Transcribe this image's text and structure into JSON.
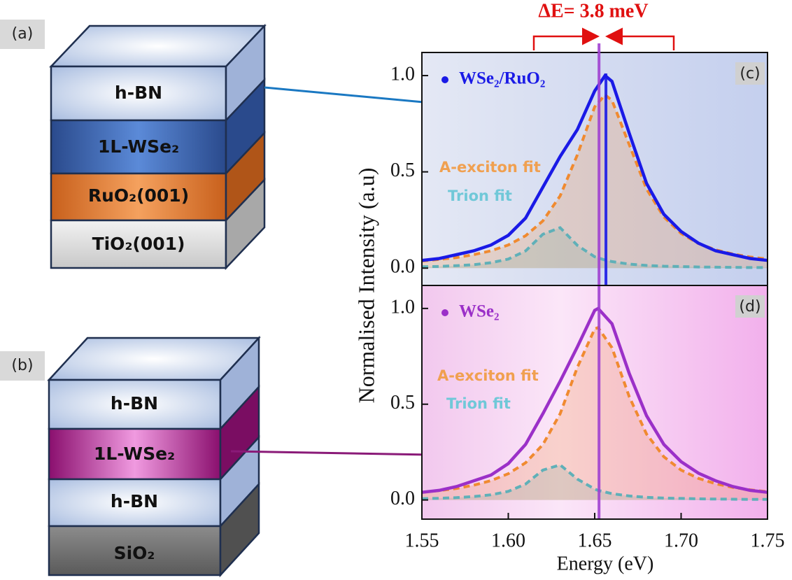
{
  "diagram": {
    "stack_a": {
      "label": "(a)",
      "layers": [
        "h-BN",
        "1L-WSe₂",
        "RuO₂(001)",
        "TiO₂(001)"
      ]
    },
    "stack_b": {
      "label": "(b)",
      "layers": [
        "h-BN",
        "1L-WSe₂",
        "h-BN",
        "SiO₂"
      ]
    }
  },
  "chart_data": [
    {
      "type": "line",
      "panel_label": "(c)",
      "annotation": "ΔE= 3.8 meV",
      "ylabel": "Normalised Intensity (a.u)",
      "x": [
        1.55,
        1.56,
        1.57,
        1.58,
        1.59,
        1.6,
        1.61,
        1.62,
        1.63,
        1.64,
        1.65,
        1.656,
        1.66,
        1.67,
        1.68,
        1.69,
        1.7,
        1.71,
        1.72,
        1.73,
        1.74,
        1.75
      ],
      "series": [
        {
          "name": "WSe₂/RuO₂",
          "color": "#1a1ae6",
          "style": "solid",
          "values": [
            0.04,
            0.05,
            0.07,
            0.09,
            0.12,
            0.17,
            0.26,
            0.42,
            0.58,
            0.72,
            0.92,
            1.0,
            0.97,
            0.7,
            0.44,
            0.28,
            0.19,
            0.13,
            0.09,
            0.07,
            0.05,
            0.04
          ]
        },
        {
          "name": "A-exciton fit",
          "color": "#f08a30",
          "style": "dashed",
          "fill": true,
          "values": [
            0.037,
            0.045,
            0.055,
            0.07,
            0.09,
            0.12,
            0.168,
            0.245,
            0.375,
            0.589,
            0.838,
            0.9,
            0.871,
            0.641,
            0.411,
            0.266,
            0.18,
            0.128,
            0.095,
            0.073,
            0.058,
            0.047
          ]
        },
        {
          "name": "Trion fit",
          "color": "#5fb0b8",
          "style": "dashed",
          "fill": true,
          "values": [
            0.007,
            0.009,
            0.013,
            0.018,
            0.028,
            0.047,
            0.089,
            0.176,
            0.21,
            0.118,
            0.059,
            0.042,
            0.034,
            0.021,
            0.014,
            0.01,
            0.008,
            0.006,
            0.005,
            0.004,
            0.003,
            0.003
          ]
        }
      ],
      "vlines": [
        {
          "x": 1.6565,
          "color": "#1a1ae6"
        }
      ],
      "xlim": [
        1.55,
        1.75
      ],
      "ylim": [
        -0.09,
        1.12
      ],
      "yticks": [
        {
          "value": 0,
          "label": "0.0"
        },
        0.5,
        {
          "value": 1,
          "label": "1.0"
        }
      ]
    },
    {
      "type": "line",
      "panel_label": "(d)",
      "xlabel": "Energy (eV)",
      "x": [
        1.55,
        1.56,
        1.57,
        1.58,
        1.59,
        1.6,
        1.61,
        1.62,
        1.63,
        1.64,
        1.65,
        1.652,
        1.66,
        1.67,
        1.68,
        1.69,
        1.7,
        1.71,
        1.72,
        1.73,
        1.74,
        1.75
      ],
      "series": [
        {
          "name": "WSe₂",
          "color": "#9b30c8",
          "style": "solid",
          "values": [
            0.04,
            0.05,
            0.07,
            0.1,
            0.13,
            0.19,
            0.29,
            0.45,
            0.62,
            0.8,
            0.99,
            1.0,
            0.92,
            0.66,
            0.44,
            0.29,
            0.2,
            0.14,
            0.1,
            0.07,
            0.05,
            0.04
          ]
        },
        {
          "name": "A-exciton fit",
          "color": "#f08a30",
          "style": "dashed",
          "fill": true,
          "values": [
            0.04,
            0.049,
            0.06,
            0.077,
            0.101,
            0.137,
            0.194,
            0.289,
            0.45,
            0.693,
            0.893,
            0.9,
            0.795,
            0.539,
            0.344,
            0.226,
            0.156,
            0.113,
            0.085,
            0.066,
            0.053,
            0.043
          ]
        },
        {
          "name": "Trion fit",
          "color": "#5fb0b8",
          "style": "dashed",
          "fill": true,
          "values": [
            0.007,
            0.009,
            0.012,
            0.018,
            0.027,
            0.045,
            0.083,
            0.156,
            0.183,
            0.109,
            0.057,
            0.05,
            0.033,
            0.021,
            0.014,
            0.01,
            0.008,
            0.006,
            0.005,
            0.004,
            0.003,
            0.003
          ]
        }
      ],
      "vlines": [
        {
          "x": 1.6525,
          "color": "#a040d0"
        }
      ],
      "xlim": [
        1.55,
        1.75
      ],
      "ylim": [
        -0.1,
        1.12
      ],
      "xticks": [
        1.55,
        {
          "value": 1.6,
          "label": "1.60"
        },
        1.65,
        {
          "value": 1.7,
          "label": "1.70"
        },
        1.75
      ],
      "yticks": [
        {
          "value": 0,
          "label": "0.0"
        },
        0.5,
        {
          "value": 1,
          "label": "1.0"
        }
      ]
    }
  ]
}
